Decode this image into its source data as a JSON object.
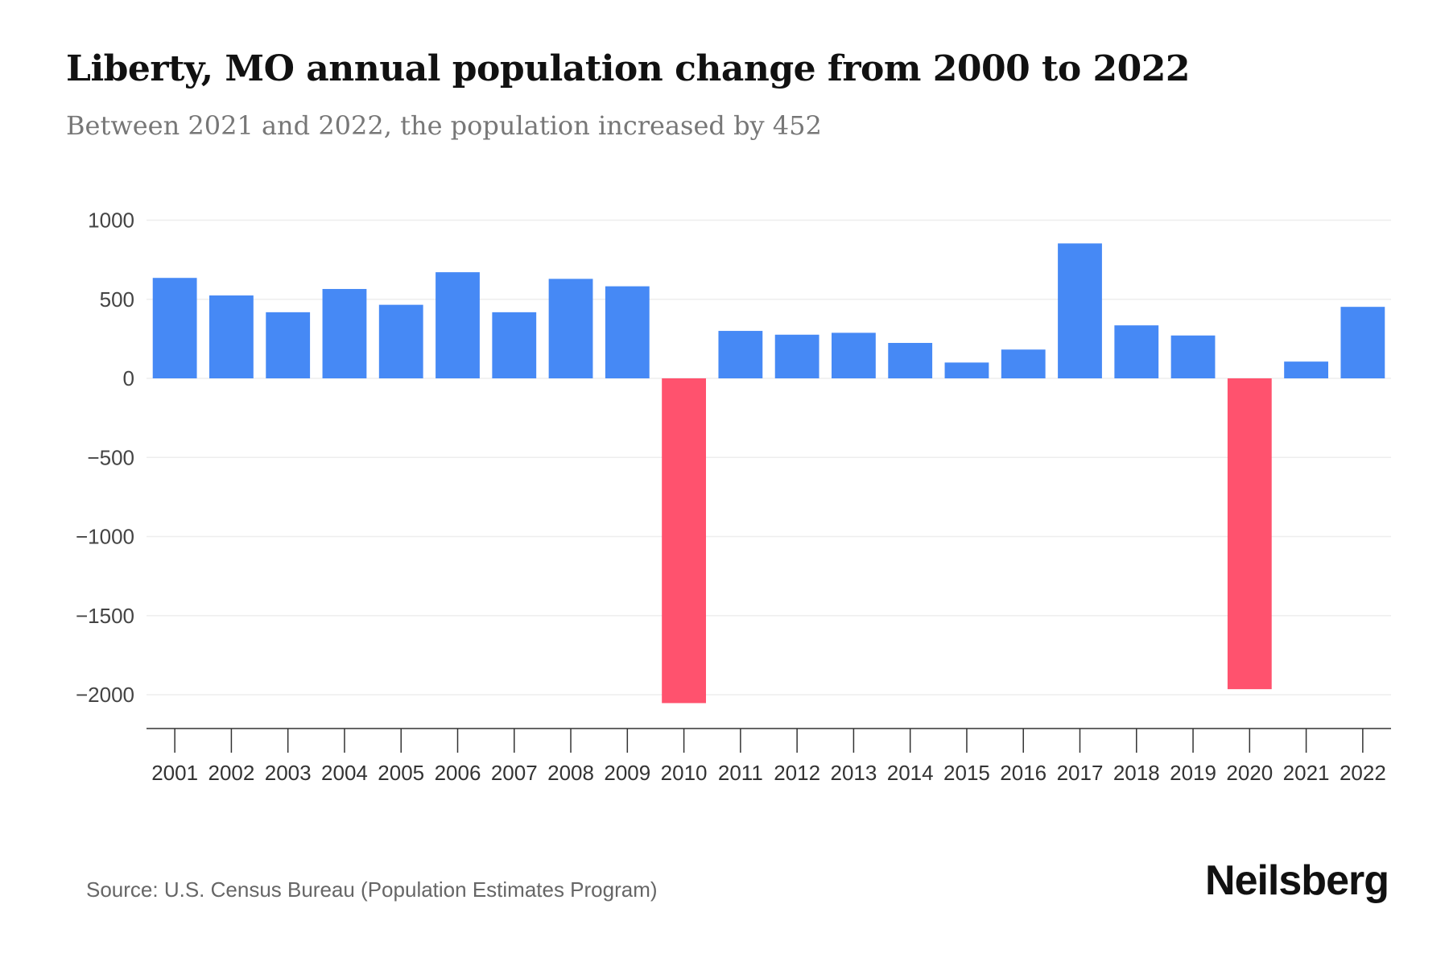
{
  "chart_data": {
    "type": "bar",
    "title": "Liberty, MO annual population change from 2000 to 2022",
    "subtitle": "Between 2021 and 2022, the population increased by 452",
    "xlabel": "",
    "ylabel": "",
    "categories": [
      "2001",
      "2002",
      "2003",
      "2004",
      "2005",
      "2006",
      "2007",
      "2008",
      "2009",
      "2010",
      "2011",
      "2012",
      "2013",
      "2014",
      "2015",
      "2016",
      "2017",
      "2018",
      "2019",
      "2020",
      "2021",
      "2022"
    ],
    "values": [
      635,
      524,
      418,
      565,
      465,
      671,
      418,
      629,
      582,
      -2053,
      300,
      276,
      288,
      224,
      100,
      182,
      853,
      335,
      271,
      -1965,
      106,
      452
    ],
    "ylim": [
      -2200,
      1000
    ],
    "yticks": [
      1000,
      500,
      0,
      -500,
      -1000,
      -1500,
      -2000
    ],
    "ytick_labels": [
      "1000",
      "500",
      "0",
      "−500",
      "−1000",
      "−1500",
      "−2000"
    ],
    "grid": true,
    "colors": {
      "positive": "#4689F5",
      "negative": "#FF526E"
    }
  },
  "source": "Source: U.S. Census Bureau (Population Estimates Program)",
  "logo": "Neilsberg"
}
